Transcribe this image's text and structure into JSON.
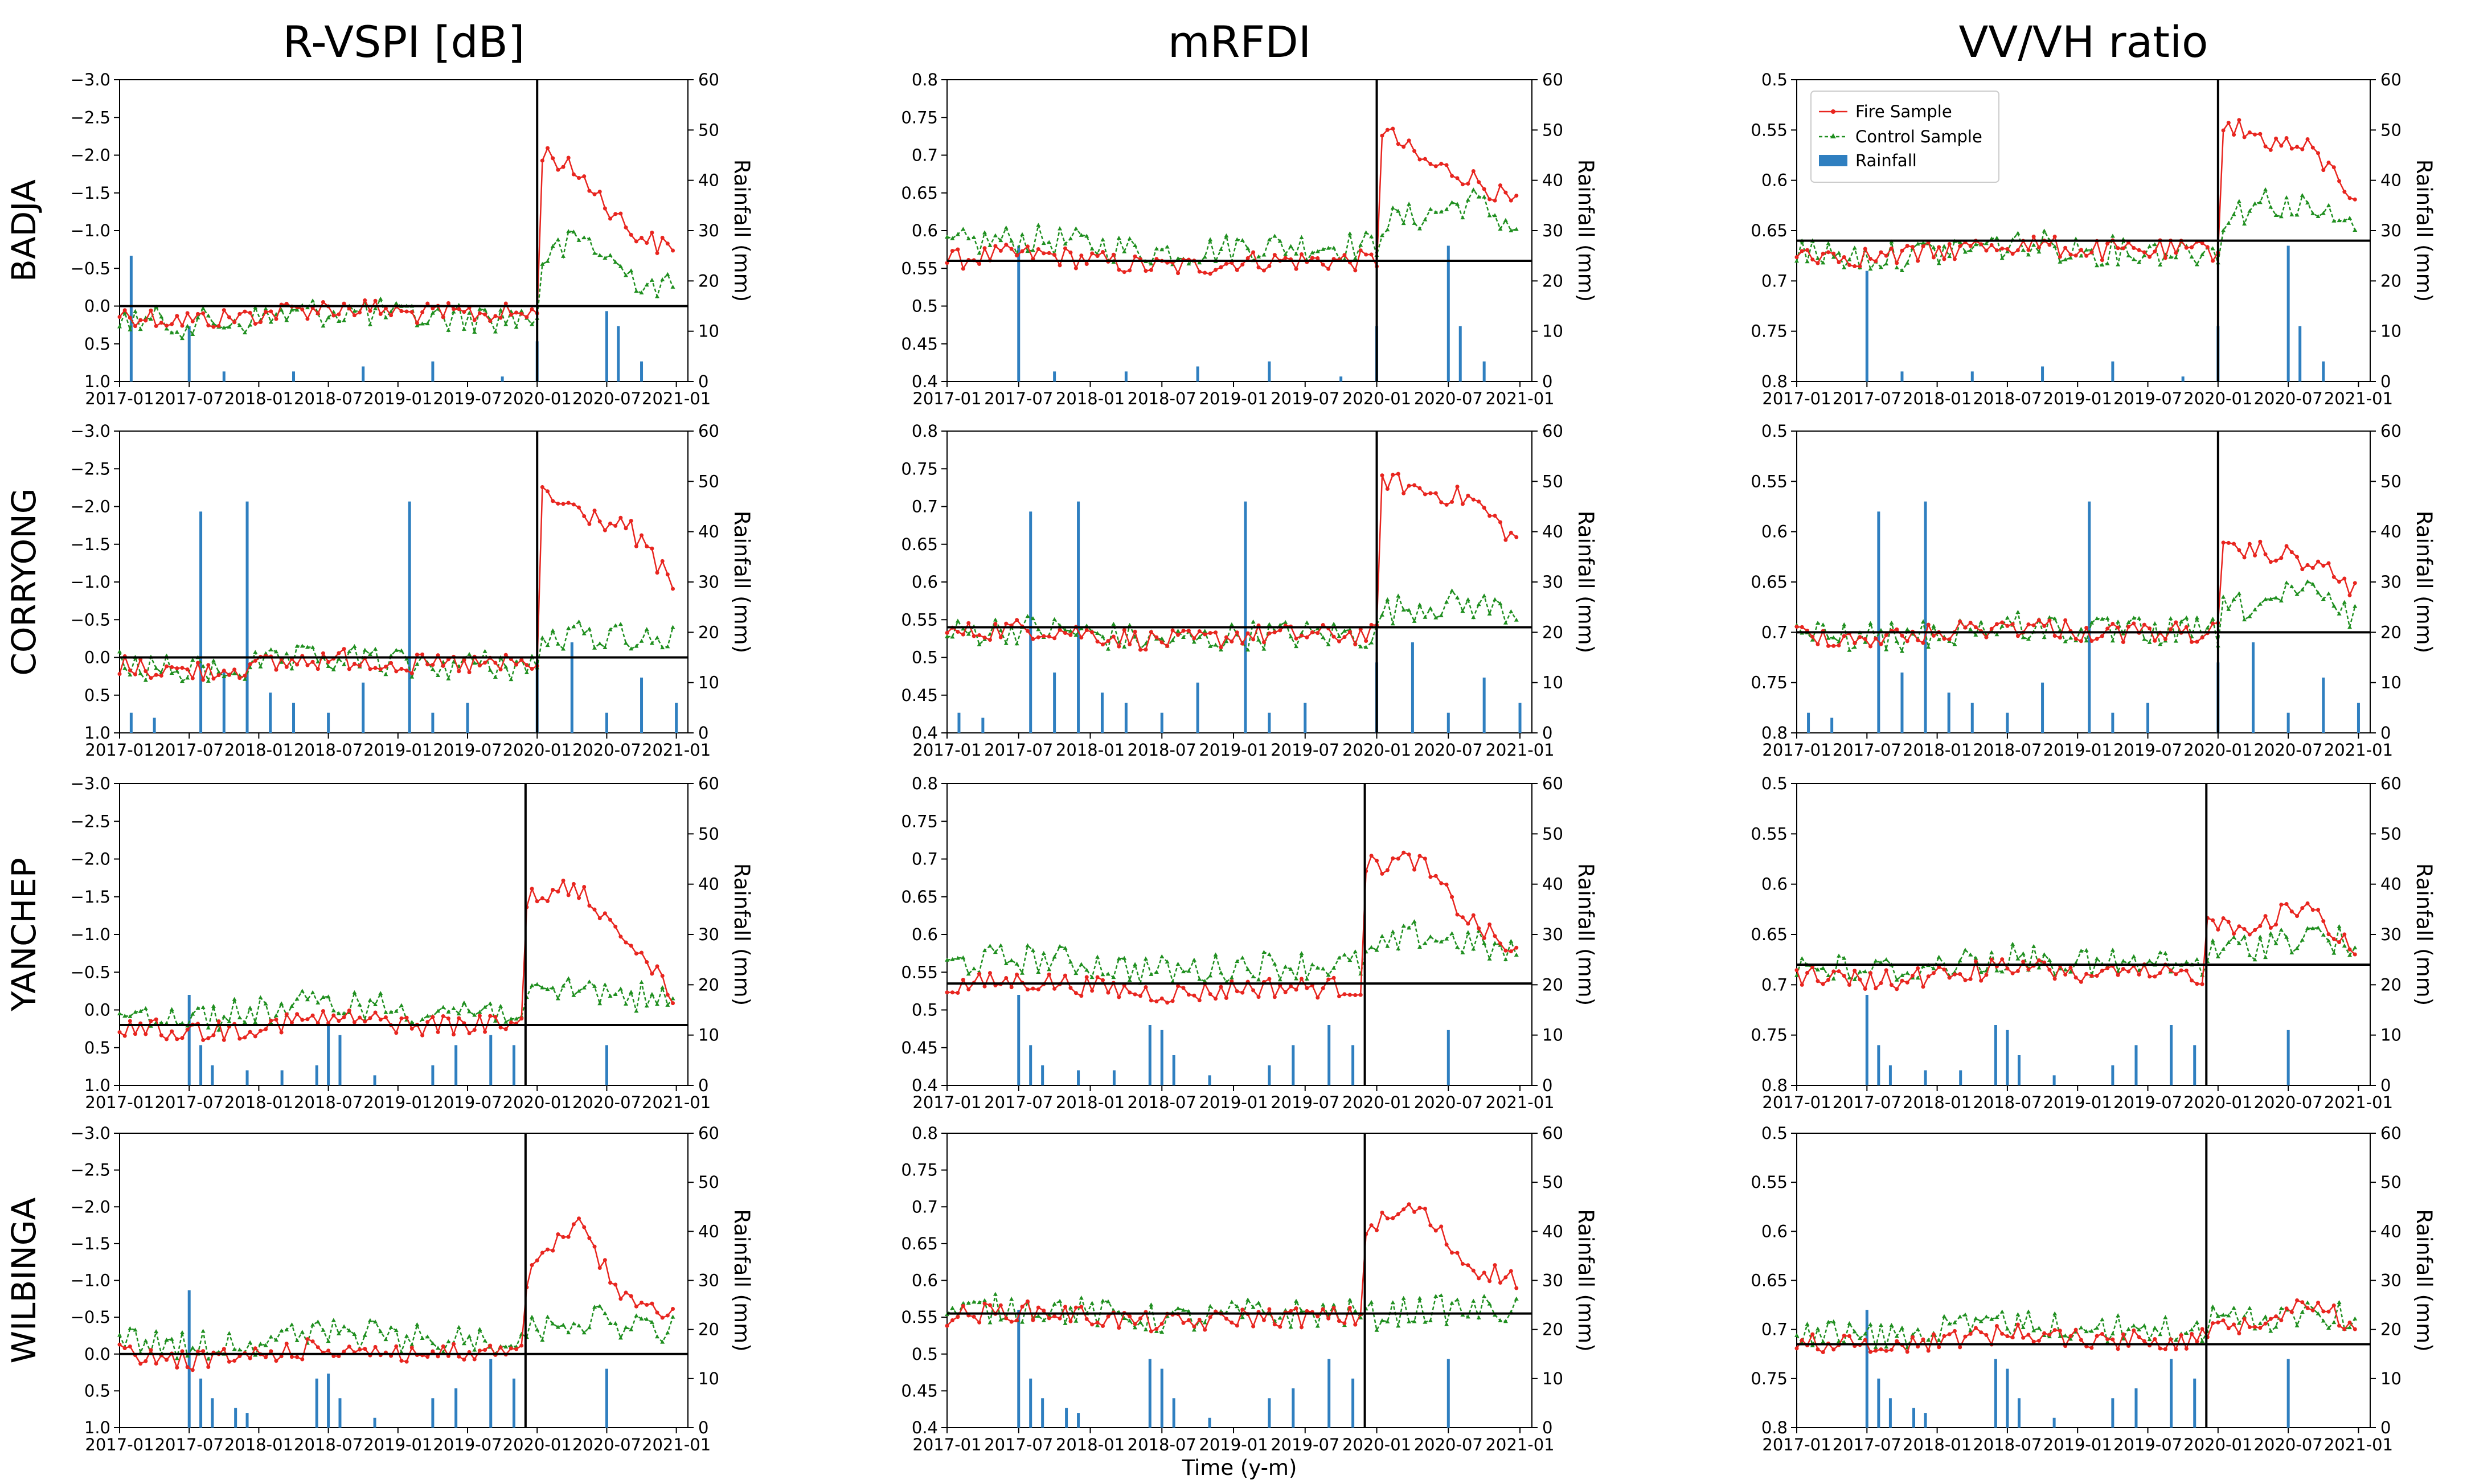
{
  "figure": {
    "column_titles": [
      "R-VSPI [dB]",
      "mRFDI",
      "VV/VH ratio"
    ],
    "row_labels": [
      "BADJA",
      "CORRYONG",
      "YANCHEP",
      "WILBINGA"
    ],
    "x_axis_title": "Time (y-m)",
    "right_axis_title": "Rainfall (mm)"
  },
  "legend": {
    "fire_label": "Fire Sample",
    "control_label": "Control Sample",
    "rainfall_label": "Rainfall"
  },
  "colors": {
    "fire": "#e8251f",
    "control": "#1f8f1f",
    "rain": "#2f7fc0",
    "line": "#000000"
  },
  "chart_data": {
    "type": "line",
    "note": "12 dual-axis panels: left axis = index (R-VSPI inverted), right axis = rainfall bars 0-60 mm; vertical line marks fire (~2019-12/2020-01), horizontal line marks pre-fire baseline",
    "x_ticks": [
      "2017-01",
      "2017-07",
      "2018-01",
      "2018-07",
      "2019-01",
      "2019-07",
      "2020-01",
      "2020-07",
      "2021-01"
    ],
    "x_range_months": [
      0,
      49
    ],
    "rain_axis": {
      "ylim": [
        0,
        60
      ],
      "ticks": [
        "0",
        "10",
        "20",
        "30",
        "40",
        "50",
        "60"
      ]
    },
    "columns": [
      {
        "metric": "R-VSPI [dB]",
        "ylim": [
          1.0,
          -3.0
        ],
        "ticks": [
          "1.0",
          "0.5",
          "0.0",
          "−0.5",
          "−1.0",
          "−1.5",
          "−2.0",
          "−2.5",
          "−3.0"
        ]
      },
      {
        "metric": "mRFDI",
        "ylim": [
          0.4,
          0.8
        ],
        "ticks": [
          "0.4",
          "0.45",
          "0.5",
          "0.55",
          "0.6",
          "0.65",
          "0.7",
          "0.75",
          "0.8"
        ]
      },
      {
        "metric": "VV/VH ratio",
        "ylim": [
          0.8,
          0.5
        ],
        "ticks": [
          "0.8",
          "0.75",
          "0.7",
          "0.65",
          "0.6",
          "0.55",
          "0.5"
        ]
      }
    ],
    "panels": [
      {
        "site": "BADJA",
        "metric": "R-VSPI [dB]",
        "fire_month": 36,
        "baseline": 0.0,
        "fire_pre": 0.1,
        "fire_post": [
          -2.1,
          -1.7,
          -1.0,
          -0.7
        ],
        "control_pre": 0.15,
        "control_post": [
          -0.6,
          -0.9,
          -0.4,
          -0.2
        ],
        "rain": [
          [
            1,
            25
          ],
          [
            6,
            11
          ],
          [
            9,
            2
          ],
          [
            15,
            2
          ],
          [
            21,
            3
          ],
          [
            27,
            4
          ],
          [
            33,
            1
          ],
          [
            36,
            8
          ],
          [
            42,
            14
          ],
          [
            43,
            11
          ],
          [
            45,
            4
          ]
        ]
      },
      {
        "site": "BADJA",
        "metric": "mRFDI",
        "fire_month": 36,
        "baseline": 0.56,
        "fire_pre": 0.56,
        "fire_post": [
          0.74,
          0.69,
          0.67,
          0.63
        ],
        "control_pre": 0.58,
        "control_post": [
          0.61,
          0.62,
          0.64,
          0.6
        ],
        "rain": [
          [
            6,
            27
          ],
          [
            9,
            2
          ],
          [
            15,
            2
          ],
          [
            21,
            3
          ],
          [
            27,
            4
          ],
          [
            33,
            1
          ],
          [
            36,
            11
          ],
          [
            42,
            27
          ],
          [
            43,
            11
          ],
          [
            45,
            4
          ]
        ]
      },
      {
        "site": "BADJA",
        "metric": "VV/VH ratio",
        "fire_month": 36,
        "baseline": 0.66,
        "fire_pre": 0.67,
        "fire_post": [
          0.54,
          0.56,
          0.57,
          0.62
        ],
        "control_pre": 0.67,
        "control_post": [
          0.64,
          0.62,
          0.63,
          0.65
        ],
        "rain": [
          [
            6,
            22
          ],
          [
            9,
            2
          ],
          [
            15,
            2
          ],
          [
            21,
            3
          ],
          [
            27,
            4
          ],
          [
            33,
            1
          ],
          [
            36,
            11
          ],
          [
            42,
            27
          ],
          [
            43,
            11
          ],
          [
            45,
            4
          ]
        ]
      },
      {
        "site": "CORRYONG",
        "metric": "R-VSPI [dB]",
        "fire_month": 36,
        "baseline": 0.0,
        "fire_pre": 0.1,
        "fire_post": [
          -2.2,
          -1.9,
          -1.7,
          -0.9
        ],
        "control_pre": 0.1,
        "control_post": [
          -0.2,
          -0.3,
          -0.3,
          -0.2
        ],
        "rain": [
          [
            1,
            4
          ],
          [
            3,
            3
          ],
          [
            7,
            44
          ],
          [
            9,
            12
          ],
          [
            11,
            46
          ],
          [
            13,
            8
          ],
          [
            15,
            6
          ],
          [
            18,
            4
          ],
          [
            21,
            10
          ],
          [
            25,
            46
          ],
          [
            27,
            4
          ],
          [
            30,
            6
          ],
          [
            36,
            14
          ],
          [
            39,
            18
          ],
          [
            42,
            4
          ],
          [
            45,
            11
          ],
          [
            48,
            6
          ]
        ]
      },
      {
        "site": "CORRYONG",
        "metric": "mRFDI",
        "fire_month": 36,
        "baseline": 0.54,
        "fire_pre": 0.53,
        "fire_post": [
          0.74,
          0.72,
          0.71,
          0.65
        ],
        "control_pre": 0.53,
        "control_post": [
          0.56,
          0.57,
          0.57,
          0.56
        ],
        "rain": [
          [
            1,
            4
          ],
          [
            3,
            3
          ],
          [
            7,
            44
          ],
          [
            9,
            12
          ],
          [
            11,
            46
          ],
          [
            13,
            8
          ],
          [
            15,
            6
          ],
          [
            18,
            4
          ],
          [
            21,
            10
          ],
          [
            25,
            46
          ],
          [
            27,
            4
          ],
          [
            30,
            6
          ],
          [
            36,
            14
          ],
          [
            39,
            18
          ],
          [
            42,
            4
          ],
          [
            45,
            11
          ],
          [
            48,
            6
          ]
        ]
      },
      {
        "site": "CORRYONG",
        "metric": "VV/VH ratio",
        "fire_month": 36,
        "baseline": 0.7,
        "fire_pre": 0.7,
        "fire_post": [
          0.62,
          0.62,
          0.63,
          0.66
        ],
        "control_pre": 0.7,
        "control_post": [
          0.68,
          0.67,
          0.66,
          0.69
        ],
        "rain": [
          [
            1,
            4
          ],
          [
            3,
            3
          ],
          [
            7,
            44
          ],
          [
            9,
            12
          ],
          [
            11,
            46
          ],
          [
            13,
            8
          ],
          [
            15,
            6
          ],
          [
            18,
            4
          ],
          [
            21,
            10
          ],
          [
            25,
            46
          ],
          [
            27,
            4
          ],
          [
            30,
            6
          ],
          [
            36,
            14
          ],
          [
            39,
            18
          ],
          [
            42,
            4
          ],
          [
            45,
            11
          ],
          [
            48,
            6
          ]
        ]
      },
      {
        "site": "YANCHEP",
        "metric": "R-VSPI [dB]",
        "fire_month": 35,
        "baseline": 0.2,
        "fire_pre": 0.2,
        "fire_post": [
          -1.5,
          -1.6,
          -1.0,
          -0.1
        ],
        "control_pre": 0.0,
        "control_post": [
          -0.1,
          -0.3,
          -0.2,
          -0.1
        ],
        "rain": [
          [
            6,
            18
          ],
          [
            7,
            8
          ],
          [
            8,
            4
          ],
          [
            11,
            3
          ],
          [
            14,
            3
          ],
          [
            17,
            4
          ],
          [
            18,
            12
          ],
          [
            19,
            10
          ],
          [
            22,
            2
          ],
          [
            27,
            4
          ],
          [
            29,
            8
          ],
          [
            32,
            10
          ],
          [
            34,
            8
          ],
          [
            42,
            8
          ]
        ]
      },
      {
        "site": "YANCHEP",
        "metric": "mRFDI",
        "fire_month": 35,
        "baseline": 0.535,
        "fire_pre": 0.53,
        "fire_post": [
          0.69,
          0.7,
          0.62,
          0.57
        ],
        "control_pre": 0.56,
        "control_post": [
          0.57,
          0.6,
          0.59,
          0.57
        ],
        "rain": [
          [
            6,
            18
          ],
          [
            7,
            8
          ],
          [
            8,
            4
          ],
          [
            11,
            3
          ],
          [
            14,
            3
          ],
          [
            17,
            12
          ],
          [
            18,
            11
          ],
          [
            19,
            6
          ],
          [
            22,
            2
          ],
          [
            27,
            4
          ],
          [
            29,
            8
          ],
          [
            32,
            12
          ],
          [
            34,
            8
          ],
          [
            42,
            11
          ]
        ]
      },
      {
        "site": "YANCHEP",
        "metric": "VV/VH ratio",
        "fire_month": 35,
        "baseline": 0.68,
        "fire_pre": 0.69,
        "fire_post": [
          0.64,
          0.64,
          0.62,
          0.67
        ],
        "control_pre": 0.68,
        "control_post": [
          0.67,
          0.66,
          0.65,
          0.66
        ],
        "rain": [
          [
            6,
            18
          ],
          [
            7,
            8
          ],
          [
            8,
            4
          ],
          [
            11,
            3
          ],
          [
            14,
            3
          ],
          [
            17,
            12
          ],
          [
            18,
            11
          ],
          [
            19,
            6
          ],
          [
            22,
            2
          ],
          [
            27,
            4
          ],
          [
            29,
            8
          ],
          [
            32,
            12
          ],
          [
            34,
            8
          ],
          [
            42,
            11
          ]
        ]
      },
      {
        "site": "WILBINGA",
        "metric": "R-VSPI [dB]",
        "fire_month": 35,
        "baseline": 0.0,
        "fire_pre": 0.0,
        "fire_post": [
          -1.0,
          -1.8,
          -0.7,
          -0.6
        ],
        "control_pre": -0.2,
        "control_post": [
          -0.3,
          -0.5,
          -0.4,
          -0.3
        ],
        "rain": [
          [
            6,
            28
          ],
          [
            7,
            10
          ],
          [
            8,
            6
          ],
          [
            10,
            4
          ],
          [
            11,
            3
          ],
          [
            17,
            10
          ],
          [
            18,
            11
          ],
          [
            19,
            6
          ],
          [
            22,
            2
          ],
          [
            27,
            6
          ],
          [
            29,
            8
          ],
          [
            32,
            14
          ],
          [
            34,
            10
          ],
          [
            42,
            12
          ]
        ]
      },
      {
        "site": "WILBINGA",
        "metric": "mRFDI",
        "fire_month": 35,
        "baseline": 0.555,
        "fire_pre": 0.55,
        "fire_post": [
          0.67,
          0.7,
          0.62,
          0.6
        ],
        "control_pre": 0.555,
        "control_post": [
          0.55,
          0.56,
          0.56,
          0.56
        ],
        "rain": [
          [
            6,
            24
          ],
          [
            7,
            10
          ],
          [
            8,
            6
          ],
          [
            10,
            4
          ],
          [
            11,
            3
          ],
          [
            17,
            14
          ],
          [
            18,
            12
          ],
          [
            19,
            6
          ],
          [
            22,
            2
          ],
          [
            27,
            6
          ],
          [
            29,
            8
          ],
          [
            32,
            14
          ],
          [
            34,
            10
          ],
          [
            42,
            14
          ]
        ]
      },
      {
        "site": "WILBINGA",
        "metric": "VV/VH ratio",
        "fire_month": 35,
        "baseline": 0.715,
        "fire_pre": 0.71,
        "fire_post": [
          0.7,
          0.69,
          0.67,
          0.7
        ],
        "control_pre": 0.7,
        "control_post": [
          0.69,
          0.69,
          0.68,
          0.69
        ],
        "rain": [
          [
            6,
            24
          ],
          [
            7,
            10
          ],
          [
            8,
            6
          ],
          [
            10,
            4
          ],
          [
            11,
            3
          ],
          [
            17,
            14
          ],
          [
            18,
            12
          ],
          [
            19,
            6
          ],
          [
            22,
            2
          ],
          [
            27,
            6
          ],
          [
            29,
            8
          ],
          [
            32,
            14
          ],
          [
            34,
            10
          ],
          [
            42,
            14
          ]
        ]
      }
    ]
  }
}
